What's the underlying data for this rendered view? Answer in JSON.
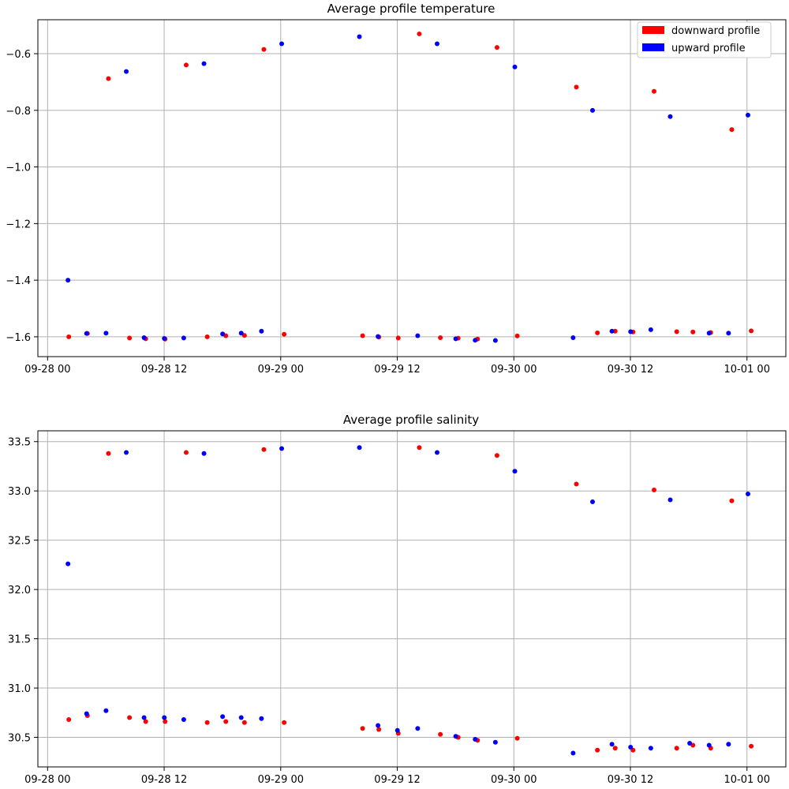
{
  "chart_data": [
    {
      "type": "scatter",
      "title": "Average profile temperature",
      "xlabel": "",
      "ylabel": "",
      "xlim": [
        "2024-09-27T23:00",
        "2024-10-01T04:00"
      ],
      "ylim": [
        -1.67,
        -0.48
      ],
      "xticks": [
        {
          "value": "2024-09-28T00:00",
          "label": "09-28 00"
        },
        {
          "value": "2024-09-28T12:00",
          "label": "09-28 12"
        },
        {
          "value": "2024-09-29T00:00",
          "label": "09-29 00"
        },
        {
          "value": "2024-09-29T12:00",
          "label": "09-29 12"
        },
        {
          "value": "2024-09-30T00:00",
          "label": "09-30 00"
        },
        {
          "value": "2024-09-30T12:00",
          "label": "09-30 12"
        },
        {
          "value": "2024-10-01T00:00",
          "label": "10-01 00"
        }
      ],
      "yticks": [
        {
          "value": -0.6,
          "label": "−0.6"
        },
        {
          "value": -0.8,
          "label": "−0.8"
        },
        {
          "value": -1.0,
          "label": "−1.0"
        },
        {
          "value": -1.2,
          "label": "−1.2"
        },
        {
          "value": -1.4,
          "label": "−1.4"
        },
        {
          "value": -1.6,
          "label": "−1.6"
        }
      ],
      "grid": true,
      "legend_position": "top-right",
      "legend": [
        {
          "label": "downward profile",
          "color": "#ff0000"
        },
        {
          "label": "upward profile",
          "color": "#0000ff"
        }
      ],
      "series": [
        {
          "name": "downward profile",
          "color": "#ff0000",
          "points": [
            {
              "x": "2024-09-28T02:11",
              "y": -1.6
            },
            {
              "x": "2024-09-28T04:06",
              "y": -1.588
            },
            {
              "x": "2024-09-28T06:16",
              "y": -0.688
            },
            {
              "x": "2024-09-28T08:26",
              "y": -1.604
            },
            {
              "x": "2024-09-28T10:06",
              "y": -1.607
            },
            {
              "x": "2024-09-28T12:06",
              "y": -1.608
            },
            {
              "x": "2024-09-28T14:16",
              "y": -0.64
            },
            {
              "x": "2024-09-28T16:26",
              "y": -1.6
            },
            {
              "x": "2024-09-28T18:21",
              "y": -1.596
            },
            {
              "x": "2024-09-28T20:16",
              "y": -1.595
            },
            {
              "x": "2024-09-28T22:16",
              "y": -0.585
            },
            {
              "x": "2024-09-29T00:21",
              "y": -1.591
            },
            {
              "x": "2024-09-29T08:26",
              "y": -1.596
            },
            {
              "x": "2024-09-29T10:06",
              "y": -1.601
            },
            {
              "x": "2024-09-29T12:06",
              "y": -1.604
            },
            {
              "x": "2024-09-29T14:16",
              "y": -0.53
            },
            {
              "x": "2024-09-29T16:26",
              "y": -1.603
            },
            {
              "x": "2024-09-29T18:16",
              "y": -1.605
            },
            {
              "x": "2024-09-29T20:16",
              "y": -1.608
            },
            {
              "x": "2024-09-29T22:16",
              "y": -0.578
            },
            {
              "x": "2024-09-30T00:21",
              "y": -1.597
            },
            {
              "x": "2024-09-30T06:26",
              "y": -0.718
            },
            {
              "x": "2024-09-30T08:36",
              "y": -1.586
            },
            {
              "x": "2024-09-30T10:26",
              "y": -1.58
            },
            {
              "x": "2024-09-30T12:16",
              "y": -1.583
            },
            {
              "x": "2024-09-30T14:26",
              "y": -0.733
            },
            {
              "x": "2024-09-30T16:46",
              "y": -1.582
            },
            {
              "x": "2024-09-30T18:26",
              "y": -1.583
            },
            {
              "x": "2024-09-30T20:16",
              "y": -1.585
            },
            {
              "x": "2024-09-30T22:26",
              "y": -0.868
            },
            {
              "x": "2024-10-01T00:26",
              "y": -1.579
            }
          ]
        },
        {
          "name": "upward profile",
          "color": "#0000ff",
          "points": [
            {
              "x": "2024-09-28T02:06",
              "y": -1.4
            },
            {
              "x": "2024-09-28T04:01",
              "y": -1.588
            },
            {
              "x": "2024-09-28T06:01",
              "y": -1.587
            },
            {
              "x": "2024-09-28T08:06",
              "y": -0.663
            },
            {
              "x": "2024-09-28T09:56",
              "y": -1.603
            },
            {
              "x": "2024-09-28T12:01",
              "y": -1.606
            },
            {
              "x": "2024-09-28T14:01",
              "y": -1.604
            },
            {
              "x": "2024-09-28T16:06",
              "y": -0.635
            },
            {
              "x": "2024-09-28T18:01",
              "y": -1.59
            },
            {
              "x": "2024-09-28T19:56",
              "y": -1.587
            },
            {
              "x": "2024-09-28T22:01",
              "y": -1.58
            },
            {
              "x": "2024-09-29T00:06",
              "y": -0.565
            },
            {
              "x": "2024-09-29T08:06",
              "y": -0.54
            },
            {
              "x": "2024-09-29T10:01",
              "y": -1.599
            },
            {
              "x": "2024-09-29T14:06",
              "y": -1.596
            },
            {
              "x": "2024-09-29T16:06",
              "y": -0.565
            },
            {
              "x": "2024-09-29T18:01",
              "y": -1.607
            },
            {
              "x": "2024-09-29T20:01",
              "y": -1.612
            },
            {
              "x": "2024-09-29T22:06",
              "y": -1.613
            },
            {
              "x": "2024-09-30T00:06",
              "y": -0.647
            },
            {
              "x": "2024-09-30T06:06",
              "y": -1.603
            },
            {
              "x": "2024-09-30T08:06",
              "y": -0.8
            },
            {
              "x": "2024-09-30T10:06",
              "y": -1.58
            },
            {
              "x": "2024-09-30T12:01",
              "y": -1.582
            },
            {
              "x": "2024-09-30T14:06",
              "y": -1.575
            },
            {
              "x": "2024-09-30T16:06",
              "y": -0.822
            },
            {
              "x": "2024-09-30T20:06",
              "y": -1.587
            },
            {
              "x": "2024-09-30T22:06",
              "y": -1.587
            },
            {
              "x": "2024-10-01T00:06",
              "y": -0.817
            }
          ]
        }
      ]
    },
    {
      "type": "scatter",
      "title": "Average profile salinity",
      "xlabel": "",
      "ylabel": "",
      "xlim": [
        "2024-09-27T23:00",
        "2024-10-01T04:00"
      ],
      "ylim": [
        30.2,
        33.61
      ],
      "xticks": [
        {
          "value": "2024-09-28T00:00",
          "label": "09-28 00"
        },
        {
          "value": "2024-09-28T12:00",
          "label": "09-28 12"
        },
        {
          "value": "2024-09-29T00:00",
          "label": "09-29 00"
        },
        {
          "value": "2024-09-29T12:00",
          "label": "09-29 12"
        },
        {
          "value": "2024-09-30T00:00",
          "label": "09-30 00"
        },
        {
          "value": "2024-09-30T12:00",
          "label": "09-30 12"
        },
        {
          "value": "2024-10-01T00:00",
          "label": "10-01 00"
        }
      ],
      "yticks": [
        {
          "value": 33.5,
          "label": "33.5"
        },
        {
          "value": 33.0,
          "label": "33.0"
        },
        {
          "value": 32.5,
          "label": "32.5"
        },
        {
          "value": 32.0,
          "label": "32.0"
        },
        {
          "value": 31.5,
          "label": "31.5"
        },
        {
          "value": 31.0,
          "label": "31.0"
        },
        {
          "value": 30.5,
          "label": "30.5"
        }
      ],
      "grid": true,
      "series": [
        {
          "name": "downward profile",
          "color": "#ff0000",
          "points": [
            {
              "x": "2024-09-28T02:11",
              "y": 30.68
            },
            {
              "x": "2024-09-28T04:06",
              "y": 30.72
            },
            {
              "x": "2024-09-28T06:16",
              "y": 33.38
            },
            {
              "x": "2024-09-28T08:26",
              "y": 30.7
            },
            {
              "x": "2024-09-28T10:06",
              "y": 30.66
            },
            {
              "x": "2024-09-28T12:06",
              "y": 30.66
            },
            {
              "x": "2024-09-28T14:16",
              "y": 33.39
            },
            {
              "x": "2024-09-28T16:26",
              "y": 30.65
            },
            {
              "x": "2024-09-28T18:21",
              "y": 30.66
            },
            {
              "x": "2024-09-28T20:16",
              "y": 30.65
            },
            {
              "x": "2024-09-28T22:16",
              "y": 33.42
            },
            {
              "x": "2024-09-29T00:21",
              "y": 30.65
            },
            {
              "x": "2024-09-29T08:26",
              "y": 30.59
            },
            {
              "x": "2024-09-29T10:06",
              "y": 30.58
            },
            {
              "x": "2024-09-29T12:06",
              "y": 30.54
            },
            {
              "x": "2024-09-29T14:16",
              "y": 33.44
            },
            {
              "x": "2024-09-29T16:26",
              "y": 30.53
            },
            {
              "x": "2024-09-29T18:16",
              "y": 30.5
            },
            {
              "x": "2024-09-29T20:16",
              "y": 30.47
            },
            {
              "x": "2024-09-29T22:16",
              "y": 33.36
            },
            {
              "x": "2024-09-30T00:21",
              "y": 30.49
            },
            {
              "x": "2024-09-30T06:26",
              "y": 33.07
            },
            {
              "x": "2024-09-30T08:36",
              "y": 30.37
            },
            {
              "x": "2024-09-30T10:26",
              "y": 30.39
            },
            {
              "x": "2024-09-30T12:16",
              "y": 30.37
            },
            {
              "x": "2024-09-30T14:26",
              "y": 33.01
            },
            {
              "x": "2024-09-30T16:46",
              "y": 30.39
            },
            {
              "x": "2024-09-30T18:26",
              "y": 30.42
            },
            {
              "x": "2024-09-30T20:16",
              "y": 30.39
            },
            {
              "x": "2024-09-30T22:26",
              "y": 32.9
            },
            {
              "x": "2024-10-01T00:26",
              "y": 30.41
            }
          ]
        },
        {
          "name": "upward profile",
          "color": "#0000ff",
          "points": [
            {
              "x": "2024-09-28T02:06",
              "y": 32.26
            },
            {
              "x": "2024-09-28T04:01",
              "y": 30.74
            },
            {
              "x": "2024-09-28T06:01",
              "y": 30.77
            },
            {
              "x": "2024-09-28T08:06",
              "y": 33.39
            },
            {
              "x": "2024-09-28T09:56",
              "y": 30.7
            },
            {
              "x": "2024-09-28T12:01",
              "y": 30.7
            },
            {
              "x": "2024-09-28T14:01",
              "y": 30.68
            },
            {
              "x": "2024-09-28T16:06",
              "y": 33.38
            },
            {
              "x": "2024-09-28T18:01",
              "y": 30.71
            },
            {
              "x": "2024-09-28T19:56",
              "y": 30.7
            },
            {
              "x": "2024-09-28T22:01",
              "y": 30.69
            },
            {
              "x": "2024-09-29T00:06",
              "y": 33.43
            },
            {
              "x": "2024-09-29T08:06",
              "y": 33.44
            },
            {
              "x": "2024-09-29T10:01",
              "y": 30.62
            },
            {
              "x": "2024-09-29T12:01",
              "y": 30.57
            },
            {
              "x": "2024-09-29T14:06",
              "y": 30.59
            },
            {
              "x": "2024-09-29T16:06",
              "y": 33.39
            },
            {
              "x": "2024-09-29T18:01",
              "y": 30.51
            },
            {
              "x": "2024-09-29T20:01",
              "y": 30.48
            },
            {
              "x": "2024-09-29T22:06",
              "y": 30.45
            },
            {
              "x": "2024-09-30T00:06",
              "y": 33.2
            },
            {
              "x": "2024-09-30T06:06",
              "y": 30.34
            },
            {
              "x": "2024-09-30T08:06",
              "y": 32.89
            },
            {
              "x": "2024-09-30T10:06",
              "y": 30.43
            },
            {
              "x": "2024-09-30T12:01",
              "y": 30.4
            },
            {
              "x": "2024-09-30T14:06",
              "y": 30.39
            },
            {
              "x": "2024-09-30T16:06",
              "y": 32.91
            },
            {
              "x": "2024-09-30T18:06",
              "y": 30.44
            },
            {
              "x": "2024-09-30T20:06",
              "y": 30.42
            },
            {
              "x": "2024-09-30T22:06",
              "y": 30.43
            },
            {
              "x": "2024-10-01T00:06",
              "y": 32.97
            }
          ]
        }
      ]
    }
  ]
}
